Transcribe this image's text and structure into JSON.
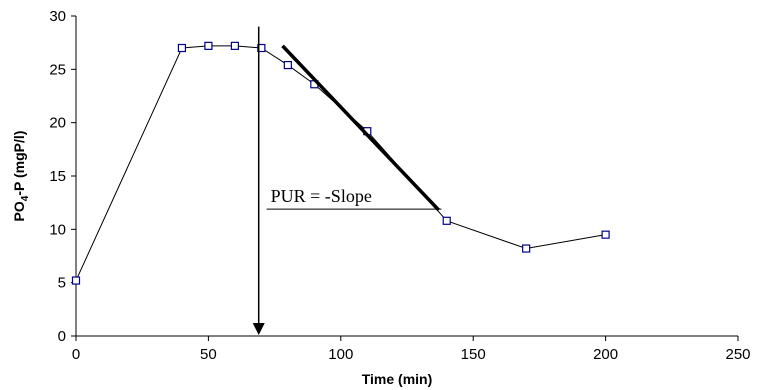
{
  "chart_data": {
    "type": "scatter",
    "xlabel": "Time (min)",
    "ylabel_main": "PO",
    "ylabel_sub": "4",
    "ylabel_rest": "-P (mgP/l)",
    "xlim": [
      0,
      250
    ],
    "ylim": [
      0,
      30
    ],
    "x_ticks": [
      0,
      50,
      100,
      150,
      200,
      250
    ],
    "y_ticks": [
      0,
      5,
      10,
      15,
      20,
      25,
      30
    ],
    "grid": false,
    "series": [
      {
        "x": [
          0,
          40,
          50,
          60,
          70,
          80,
          90,
          110,
          140,
          170,
          200
        ],
        "y": [
          5.2,
          27.0,
          27.2,
          27.2,
          27.0,
          25.4,
          23.6,
          19.2,
          10.8,
          8.2,
          9.5
        ],
        "marker": "square",
        "color": "#00008b"
      }
    ],
    "annotations": {
      "slope_text": "PUR = -Slope",
      "slope_line": {
        "x": [
          78,
          137
        ],
        "y": [
          27.2,
          11.8
        ]
      },
      "vertical_arrow": {
        "x": 69,
        "y_from": 29.0,
        "y_to": 0
      },
      "text_underline": {
        "x": [
          72,
          138
        ],
        "y": 11.9
      }
    }
  }
}
